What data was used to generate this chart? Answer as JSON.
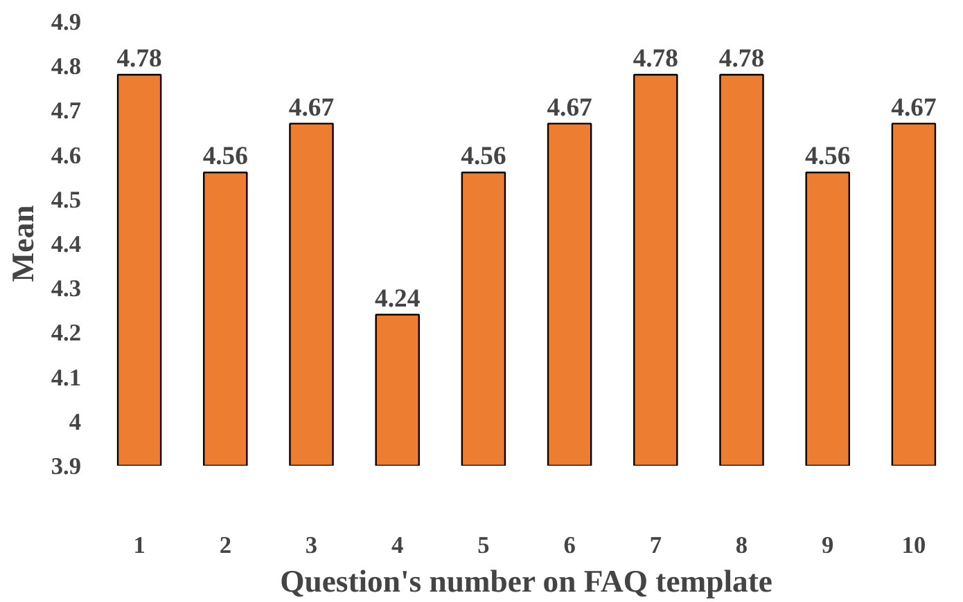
{
  "chart_data": {
    "type": "bar",
    "xlabel": "Question's number on FAQ template",
    "ylabel": "Mean",
    "categories": [
      "1",
      "2",
      "3",
      "4",
      "5",
      "6",
      "7",
      "8",
      "9",
      "10"
    ],
    "values": [
      4.78,
      4.56,
      4.67,
      4.24,
      4.56,
      4.67,
      4.78,
      4.78,
      4.56,
      4.67
    ],
    "color": "#ed7d31",
    "ylim": [
      3.9,
      4.9
    ],
    "yticks": [
      3.9,
      4,
      4.1,
      4.2,
      4.3,
      4.4,
      4.5,
      4.6,
      4.7,
      4.8,
      4.9
    ],
    "data_labels": true
  }
}
